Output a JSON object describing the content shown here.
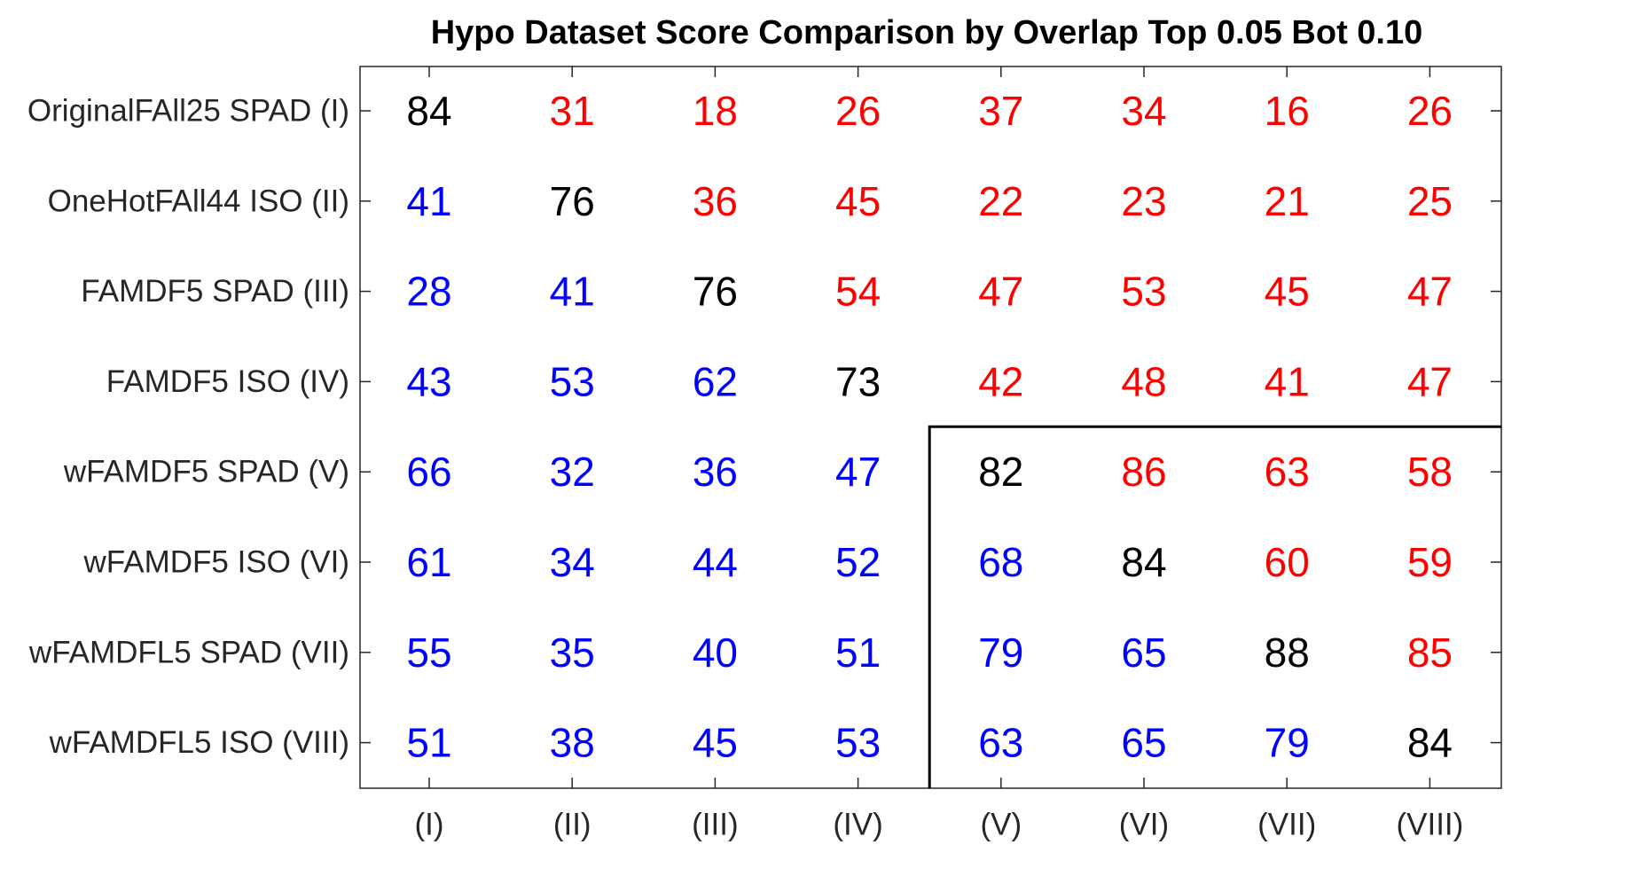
{
  "chart_data": {
    "type": "table",
    "title": "Hypo Dataset Score Comparison by Overlap Top 0.05 Bot 0.10",
    "rows": [
      "OriginalFAll25 SPAD (I)",
      "OneHotFAll44 ISO (II)",
      "FAMDF5 SPAD (III)",
      "FAMDF5 ISO (IV)",
      "wFAMDF5 SPAD (V)",
      "wFAMDF5 ISO (VI)",
      "wFAMDFL5 SPAD (VII)",
      "wFAMDFL5 ISO (VIII)"
    ],
    "columns": [
      "(I)",
      "(II)",
      "(III)",
      "(IV)",
      "(V)",
      "(VI)",
      "(VII)",
      "(VIII)"
    ],
    "values": [
      [
        84,
        31,
        18,
        26,
        37,
        34,
        16,
        26
      ],
      [
        41,
        76,
        36,
        45,
        22,
        23,
        21,
        25
      ],
      [
        28,
        41,
        76,
        54,
        47,
        53,
        45,
        47
      ],
      [
        43,
        53,
        62,
        73,
        42,
        48,
        41,
        47
      ],
      [
        66,
        32,
        36,
        47,
        82,
        86,
        63,
        58
      ],
      [
        61,
        34,
        44,
        52,
        68,
        84,
        60,
        59
      ],
      [
        55,
        35,
        40,
        51,
        79,
        65,
        88,
        85
      ],
      [
        51,
        38,
        45,
        53,
        63,
        65,
        79,
        84
      ]
    ],
    "colors": {
      "diagonal": "#000000",
      "upper_triangle": "#ff0000",
      "lower_triangle": "#0000ff"
    },
    "highlight_block": {
      "rows": [
        5,
        8
      ],
      "columns": [
        5,
        8
      ]
    }
  }
}
